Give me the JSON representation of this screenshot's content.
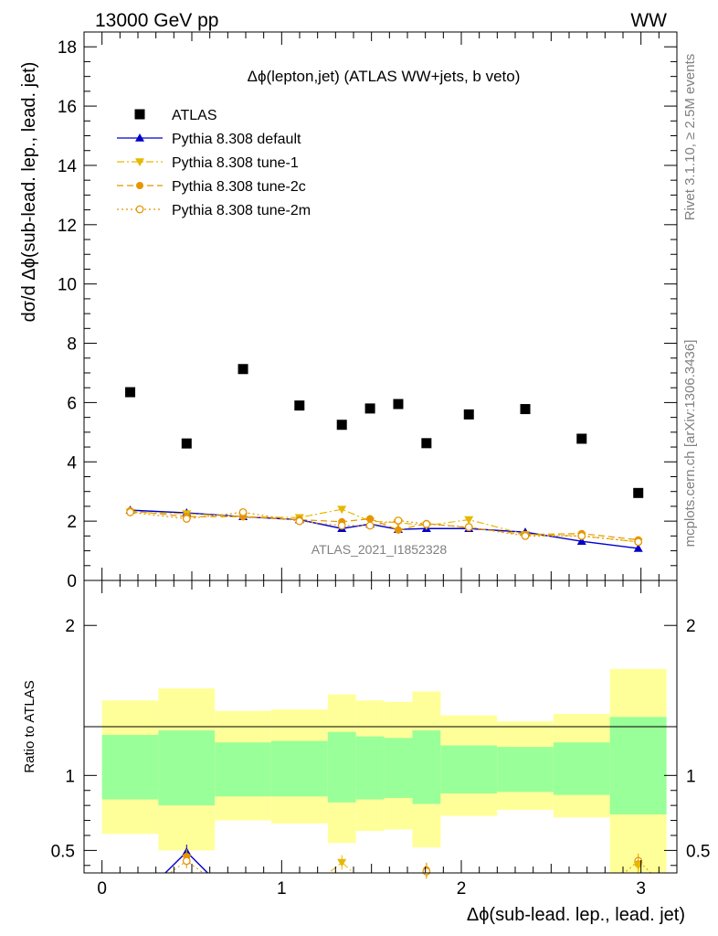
{
  "header": {
    "left": "13000 GeV pp",
    "right": "WW"
  },
  "side_labels": {
    "rivet": "Rivet 3.1.10, ≥ 2.5M events",
    "mcplots": "mcplots.cern.ch [arXiv:1306.3436]"
  },
  "watermark": "ATLAS_2021_I1852328",
  "chart_data": [
    {
      "type": "scatter",
      "title": "Δϕ(lepton,jet) (ATLAS WW+jets, b veto)",
      "xlabel": "Δϕ(sub-lead. lep., lead. jet)",
      "ylabel": "dσ/d Δϕ(sub-lead. lep., lead. jet)",
      "xlim": [
        -0.1,
        3.2
      ],
      "ylim": [
        0,
        18.5
      ],
      "xticks": [
        "0",
        "1",
        "2",
        "3"
      ],
      "yticks": [
        "0",
        "2",
        "4",
        "6",
        "8",
        "10",
        "12",
        "14",
        "16",
        "18"
      ],
      "legend_position": "top-left",
      "series": [
        {
          "name": "ATLAS",
          "style": "square",
          "color": "#000000",
          "x": [
            0.157,
            0.471,
            0.785,
            1.099,
            1.335,
            1.492,
            1.649,
            1.806,
            2.042,
            2.356,
            2.67,
            2.985
          ],
          "y": [
            6.35,
            4.62,
            7.13,
            5.9,
            5.25,
            5.8,
            5.95,
            4.63,
            5.6,
            5.78,
            4.78,
            2.95
          ]
        },
        {
          "name": "Pythia 8.308 default",
          "style": "triangle-up",
          "line": "solid",
          "color": "#0000cc",
          "x": [
            0.157,
            0.471,
            0.785,
            1.099,
            1.335,
            1.492,
            1.649,
            1.806,
            2.042,
            2.356,
            2.67,
            2.985
          ],
          "y": [
            2.37,
            2.28,
            2.15,
            2.05,
            1.75,
            1.9,
            1.72,
            1.75,
            1.75,
            1.63,
            1.32,
            1.08
          ]
        },
        {
          "name": "Pythia 8.308 tune-1",
          "style": "triangle-down",
          "line": "dashdot",
          "color": "#e6b800",
          "x": [
            0.157,
            0.471,
            0.785,
            1.099,
            1.335,
            1.492,
            1.649,
            1.806,
            2.042,
            2.356,
            2.67,
            2.985
          ],
          "y": [
            2.3,
            2.25,
            2.15,
            2.12,
            2.4,
            2.0,
            1.95,
            1.85,
            2.05,
            1.55,
            1.5,
            1.3
          ]
        },
        {
          "name": "Pythia 8.308 tune-2c",
          "style": "circle",
          "line": "dashed",
          "color": "#e69500",
          "x": [
            0.157,
            0.471,
            0.785,
            1.099,
            1.335,
            1.492,
            1.649,
            1.806,
            2.042,
            2.356,
            2.67,
            2.985
          ],
          "y": [
            2.35,
            2.15,
            2.15,
            2.05,
            1.98,
            2.08,
            1.7,
            1.92,
            1.78,
            1.55,
            1.58,
            1.37
          ]
        },
        {
          "name": "Pythia 8.308 tune-2m",
          "style": "open-circle",
          "line": "dotted",
          "color": "#e69500",
          "x": [
            0.157,
            0.471,
            0.785,
            1.099,
            1.335,
            1.492,
            1.649,
            1.806,
            2.042,
            2.356,
            2.67,
            2.985
          ],
          "y": [
            2.3,
            2.08,
            2.3,
            2.0,
            1.85,
            1.85,
            2.02,
            1.9,
            1.8,
            1.5,
            1.5,
            1.3
          ]
        }
      ]
    },
    {
      "type": "band",
      "ylabel": "Ratio to ATLAS",
      "xlim": [
        -0.1,
        3.2
      ],
      "ylim": [
        0.35,
        2.3
      ],
      "yticks": [
        "0.5",
        "1",
        "2"
      ],
      "reference_line": 1,
      "bins": [
        {
          "x0": 0.0,
          "x1": 0.314,
          "yellow": [
            0.61,
            1.5
          ],
          "green": [
            0.84,
            1.27
          ]
        },
        {
          "x0": 0.314,
          "x1": 0.628,
          "yellow": [
            0.5,
            1.58
          ],
          "green": [
            0.8,
            1.3
          ]
        },
        {
          "x0": 0.628,
          "x1": 0.942,
          "yellow": [
            0.7,
            1.43
          ],
          "green": [
            0.86,
            1.22
          ]
        },
        {
          "x0": 0.942,
          "x1": 1.257,
          "yellow": [
            0.68,
            1.44
          ],
          "green": [
            0.86,
            1.23
          ]
        },
        {
          "x0": 1.257,
          "x1": 1.414,
          "yellow": [
            0.55,
            1.54
          ],
          "green": [
            0.82,
            1.29
          ]
        },
        {
          "x0": 1.414,
          "x1": 1.571,
          "yellow": [
            0.63,
            1.5
          ],
          "green": [
            0.84,
            1.26
          ]
        },
        {
          "x0": 1.571,
          "x1": 1.728,
          "yellow": [
            0.64,
            1.49
          ],
          "green": [
            0.85,
            1.25
          ]
        },
        {
          "x0": 1.728,
          "x1": 1.885,
          "yellow": [
            0.52,
            1.56
          ],
          "green": [
            0.81,
            1.3
          ]
        },
        {
          "x0": 1.885,
          "x1": 2.199,
          "yellow": [
            0.73,
            1.4
          ],
          "green": [
            0.88,
            1.2
          ]
        },
        {
          "x0": 2.199,
          "x1": 2.513,
          "yellow": [
            0.77,
            1.36
          ],
          "green": [
            0.89,
            1.19
          ]
        },
        {
          "x0": 2.513,
          "x1": 2.827,
          "yellow": [
            0.72,
            1.41
          ],
          "green": [
            0.87,
            1.22
          ]
        },
        {
          "x0": 2.827,
          "x1": 3.142,
          "yellow": [
            0.3,
            1.71
          ],
          "green": [
            0.74,
            1.39
          ]
        }
      ],
      "markers": [
        {
          "series": "Pythia 8.308 default",
          "x": 0.471,
          "y": 0.49,
          "color": "#0000cc",
          "style": "triangle-up"
        },
        {
          "series": "Pythia 8.308 tune-1",
          "x": 0.471,
          "y": 0.45,
          "color": "#e6b800",
          "style": "triangle-down"
        },
        {
          "series": "Pythia 8.308 tune-2c",
          "x": 0.471,
          "y": 0.46,
          "color": "#e69500",
          "style": "circle"
        },
        {
          "series": "Pythia 8.308 tune-2m",
          "x": 0.471,
          "y": 0.43,
          "color": "#e69500",
          "style": "open-circle"
        },
        {
          "series": "Pythia 8.308 tune-1",
          "x": 1.335,
          "y": 0.42,
          "color": "#e6b800",
          "style": "triangle-down"
        },
        {
          "series": "Pythia 8.308 tune-2c",
          "x": 1.806,
          "y": 0.37,
          "color": "#e69500",
          "style": "circle"
        },
        {
          "series": "Pythia 8.308 tune-2m",
          "x": 1.806,
          "y": 0.36,
          "color": "#e69500",
          "style": "open-circle"
        },
        {
          "series": "Pythia 8.308 tune-2m",
          "x": 2.985,
          "y": 0.43,
          "color": "#e69500",
          "style": "open-circle"
        },
        {
          "series": "Pythia 8.308 tune-2c",
          "x": 2.985,
          "y": 0.41,
          "color": "#e69500",
          "style": "circle"
        },
        {
          "series": "Pythia 8.308 tune-1",
          "x": 2.985,
          "y": 0.4,
          "color": "#e6b800",
          "style": "triangle-down"
        }
      ]
    }
  ]
}
